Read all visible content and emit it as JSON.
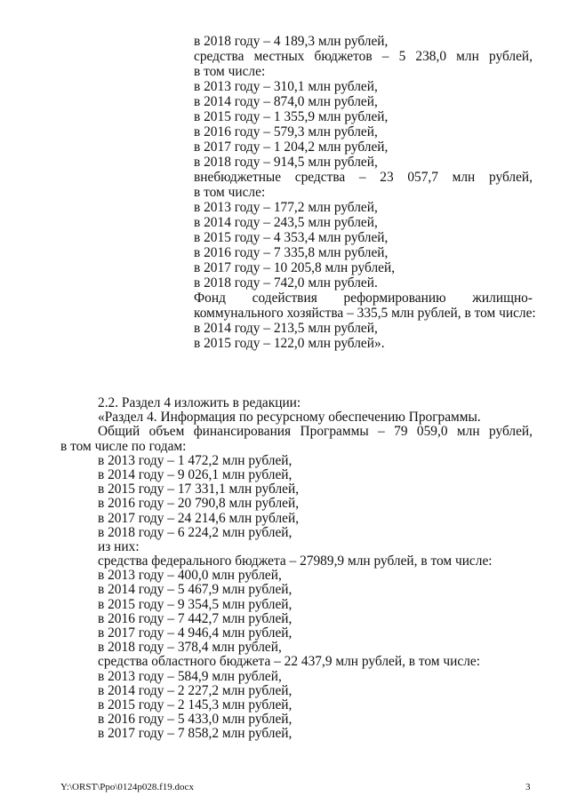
{
  "upper_lines": [
    {
      "text": "в 2018 году – 4 189,3 млн рублей,",
      "j": false
    },
    {
      "text": "средства местных бюджетов – 5 238,0 млн рублей,",
      "j": true
    },
    {
      "text": "в том числе:",
      "j": false
    },
    {
      "text": "в 2013 году – 310,1 млн рублей,",
      "j": false
    },
    {
      "text": "в 2014 году – 874,0 млн рублей,",
      "j": false
    },
    {
      "text": "в 2015 году – 1 355,9 млн рублей,",
      "j": false
    },
    {
      "text": "в 2016 году – 579,3 млн рублей,",
      "j": false
    },
    {
      "text": "в 2017 году – 1 204,2 млн рублей,",
      "j": false
    },
    {
      "text": "в 2018 году – 914,5 млн рублей,",
      "j": false
    },
    {
      "text": "внебюджетные средства – 23 057,7 млн рублей,",
      "j": true
    },
    {
      "text": "в том числе:",
      "j": false
    },
    {
      "text": "в 2013 году – 177,2 млн рублей,",
      "j": false
    },
    {
      "text": "в 2014 году – 243,5 млн рублей,",
      "j": false
    },
    {
      "text": "в 2015 году – 4 353,4 млн рублей,",
      "j": false
    },
    {
      "text": "в 2016 году – 7 335,8 млн рублей,",
      "j": false
    },
    {
      "text": "в 2017 году – 10 205,8 млн рублей,",
      "j": false
    },
    {
      "text": "в 2018 году – 742,0 млн рублей.",
      "j": false
    },
    {
      "text": "Фонд содействия реформированию жилищно-",
      "j": true
    },
    {
      "text": "коммунального хозяйства – 335,5 млн рублей, в том числе:",
      "j": false
    },
    {
      "text": "в 2014 году – 213,5 млн рублей,",
      "j": false
    },
    {
      "text": "в 2015 году – 122,0 млн рублей».",
      "j": false
    },
    {
      "text": "",
      "j": false
    },
    {
      "text": "",
      "j": false
    }
  ],
  "lower_lines": [
    {
      "text": "2.2. Раздел 4 изложить в редакции:",
      "j": false,
      "in": true
    },
    {
      "text": "«Раздел 4. Информация по ресурсному обеспечению Программы.",
      "j": false,
      "in": true
    },
    {
      "text": "Общий объем финансирования Программы – 79 059,0 млн рублей,",
      "j": true,
      "in": true
    },
    {
      "text": "в том числе по годам:",
      "j": false,
      "in": false
    },
    {
      "text": "в 2013 году – 1 472,2 млн рублей,",
      "j": false,
      "in": true
    },
    {
      "text": "в 2014 году – 9 026,1 млн рублей,",
      "j": false,
      "in": true
    },
    {
      "text": "в 2015 году – 17 331,1 млн рублей,",
      "j": false,
      "in": true
    },
    {
      "text": "в 2016 году – 20 790,8 млн рублей,",
      "j": false,
      "in": true
    },
    {
      "text": "в 2017 году – 24 214,6 млн рублей,",
      "j": false,
      "in": true
    },
    {
      "text": "в 2018 году – 6 224,2 млн рублей,",
      "j": false,
      "in": true
    },
    {
      "text": "из них:",
      "j": false,
      "in": true
    },
    {
      "text": "средства федерального бюджета – 27989,9 млн рублей, в том числе:",
      "j": false,
      "in": true
    },
    {
      "text": "в 2013 году – 400,0 млн рублей,",
      "j": false,
      "in": true
    },
    {
      "text": "в 2014 году – 5 467,9 млн рублей,",
      "j": false,
      "in": true
    },
    {
      "text": "в 2015 году – 9 354,5 млн рублей,",
      "j": false,
      "in": true
    },
    {
      "text": "в 2016 году – 7 442,7 млн рублей,",
      "j": false,
      "in": true
    },
    {
      "text": "в 2017 году – 4 946,4 млн рублей,",
      "j": false,
      "in": true
    },
    {
      "text": "в 2018 году – 378,4 млн рублей,",
      "j": false,
      "in": true
    },
    {
      "text": "средства областного бюджета – 22 437,9 млн рублей, в том числе:",
      "j": false,
      "in": true
    },
    {
      "text": "в 2013 году – 584,9 млн рублей,",
      "j": false,
      "in": true
    },
    {
      "text": "в 2014 году – 2 227,2 млн рублей,",
      "j": false,
      "in": true
    },
    {
      "text": "в 2015 году – 2 145,3 млн рублей,",
      "j": false,
      "in": true
    },
    {
      "text": "в 2016 году – 5 433,0 млн рублей,",
      "j": false,
      "in": true
    },
    {
      "text": "в 2017 году – 7 858,2 млн рублей,",
      "j": false,
      "in": true
    }
  ],
  "footer": {
    "path": "Y:\\ORST\\Ppo\\0124p028.f19.docx",
    "page": "3"
  }
}
